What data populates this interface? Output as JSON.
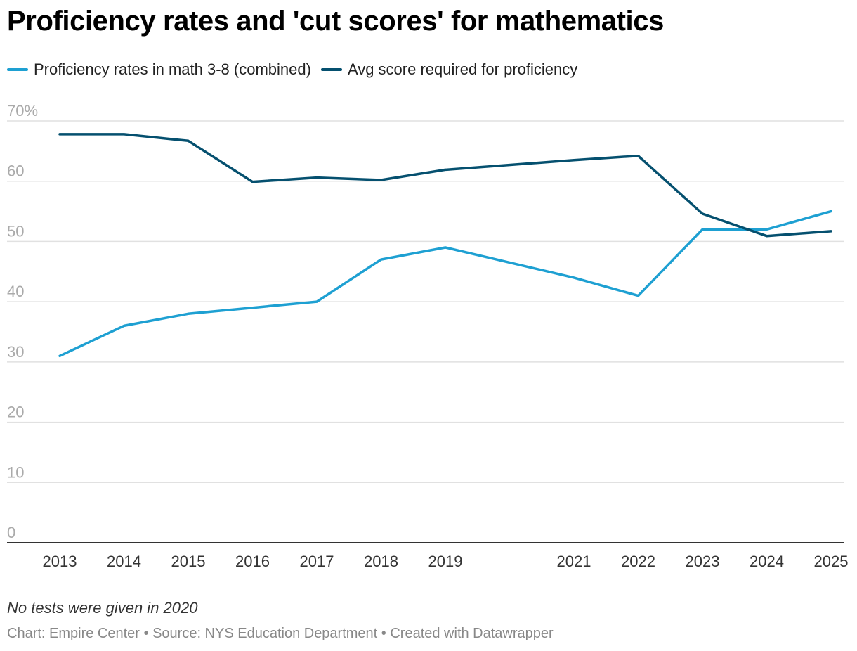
{
  "header": {
    "title": "Proficiency rates and 'cut scores' for mathematics"
  },
  "footer": {
    "note": "No tests were given in 2020",
    "credit": "Chart: Empire Center • Source: NYS Education Department • Created with Datawrapper"
  },
  "chart_data": {
    "type": "line",
    "title": "Proficiency rates and 'cut scores' for mathematics",
    "xlabel": "",
    "ylabel": "",
    "x": [
      2013,
      2014,
      2015,
      2016,
      2017,
      2018,
      2019,
      2021,
      2022,
      2023,
      2024,
      2025
    ],
    "y_ticks": [
      0,
      10,
      20,
      30,
      40,
      50,
      60,
      70
    ],
    "y_tick_labels": [
      "0",
      "10",
      "20",
      "30",
      "40",
      "50",
      "60",
      "70%"
    ],
    "ylim": [
      0,
      70
    ],
    "xlim": [
      2013,
      2025
    ],
    "grid": true,
    "legend_position": "top-left",
    "series": [
      {
        "name": "Proficiency rates in math 3-8 (combined)",
        "color": "#1ea0d2",
        "values": [
          31,
          36,
          38,
          39,
          40,
          47,
          49,
          44,
          41,
          52,
          52,
          55
        ]
      },
      {
        "name": "Avg score required for proficiency",
        "color": "#05506f",
        "values": [
          67.8,
          67.8,
          66.7,
          59.9,
          60.6,
          60.2,
          61.9,
          63.5,
          64.2,
          54.6,
          50.9,
          51.7
        ]
      }
    ]
  }
}
